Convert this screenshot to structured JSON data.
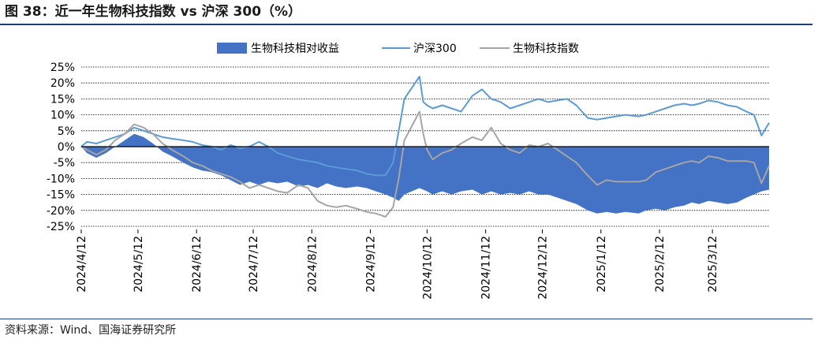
{
  "header": {
    "title": "图 38：近一年生物科技指数 vs 沪深 300（%）"
  },
  "footer": {
    "source": "资料来源：Wind、国海证券研究所"
  },
  "colors": {
    "relative": "#4472C4",
    "hs300": "#5B9BD5",
    "biotech": "#A5A5A5",
    "rule": "#1f3f7a"
  },
  "chart_data": {
    "type": "area",
    "title": "",
    "legend_position": "top-center",
    "grid": true,
    "ylim": [
      -25,
      25
    ],
    "y_ticks": [
      "25%",
      "20%",
      "15%",
      "10%",
      "5%",
      "0%",
      "-5%",
      "-10%",
      "-15%",
      "-20%",
      "-25%"
    ],
    "x_ticks": [
      "2024/4/12",
      "2024/5/12",
      "2024/6/12",
      "2024/7/12",
      "2024/8/12",
      "2024/9/12",
      "2024/10/12",
      "2024/11/12",
      "2024/12/12",
      "2025/1/12",
      "2025/2/12",
      "2025/3/12"
    ],
    "xlim": [
      "2024-04-12",
      "2025-04-11"
    ],
    "series": [
      {
        "name": "生物科技相对收益",
        "type": "area",
        "points": [
          [
            "2024-04-12",
            0
          ],
          [
            "2024-04-15",
            -2
          ],
          [
            "2024-04-20",
            -3.5
          ],
          [
            "2024-04-25",
            -2
          ],
          [
            "2024-04-30",
            0
          ],
          [
            "2024-05-05",
            2
          ],
          [
            "2024-05-10",
            4
          ],
          [
            "2024-05-15",
            3
          ],
          [
            "2024-05-20",
            1
          ],
          [
            "2024-05-25",
            -1.5
          ],
          [
            "2024-05-30",
            -3
          ],
          [
            "2024-06-05",
            -5
          ],
          [
            "2024-06-10",
            -6.5
          ],
          [
            "2024-06-15",
            -7.5
          ],
          [
            "2024-06-20",
            -8
          ],
          [
            "2024-06-25",
            -9
          ],
          [
            "2024-06-30",
            -10.5
          ],
          [
            "2024-07-05",
            -12
          ],
          [
            "2024-07-10",
            -11
          ],
          [
            "2024-07-15",
            -12
          ],
          [
            "2024-07-20",
            -11
          ],
          [
            "2024-07-25",
            -11.5
          ],
          [
            "2024-07-30",
            -11
          ],
          [
            "2024-08-05",
            -12.5
          ],
          [
            "2024-08-10",
            -12
          ],
          [
            "2024-08-15",
            -13
          ],
          [
            "2024-08-20",
            -11.5
          ],
          [
            "2024-08-25",
            -12.5
          ],
          [
            "2024-08-30",
            -13
          ],
          [
            "2024-09-05",
            -12.5
          ],
          [
            "2024-09-10",
            -13
          ],
          [
            "2024-09-15",
            -14
          ],
          [
            "2024-09-20",
            -15
          ],
          [
            "2024-09-24",
            -16
          ],
          [
            "2024-09-27",
            -17
          ],
          [
            "2024-09-30",
            -15
          ],
          [
            "2024-10-08",
            -13
          ],
          [
            "2024-10-12",
            -14
          ],
          [
            "2024-10-15",
            -15
          ],
          [
            "2024-10-20",
            -14
          ],
          [
            "2024-10-25",
            -15
          ],
          [
            "2024-10-30",
            -14
          ],
          [
            "2024-11-05",
            -13.5
          ],
          [
            "2024-11-10",
            -15
          ],
          [
            "2024-11-15",
            -14
          ],
          [
            "2024-11-20",
            -15
          ],
          [
            "2024-11-25",
            -14.5
          ],
          [
            "2024-11-30",
            -15
          ],
          [
            "2024-12-05",
            -14
          ],
          [
            "2024-12-10",
            -15
          ],
          [
            "2024-12-15",
            -15
          ],
          [
            "2024-12-20",
            -16
          ],
          [
            "2024-12-25",
            -17
          ],
          [
            "2024-12-30",
            -18
          ],
          [
            "2025-01-05",
            -20
          ],
          [
            "2025-01-10",
            -21
          ],
          [
            "2025-01-15",
            -20.5
          ],
          [
            "2025-01-20",
            -21
          ],
          [
            "2025-01-25",
            -20.5
          ],
          [
            "2025-02-01",
            -21
          ],
          [
            "2025-02-05",
            -20
          ],
          [
            "2025-02-10",
            -19.5
          ],
          [
            "2025-02-15",
            -20
          ],
          [
            "2025-02-20",
            -19
          ],
          [
            "2025-02-25",
            -18.5
          ],
          [
            "2025-03-01",
            -17.5
          ],
          [
            "2025-03-05",
            -18
          ],
          [
            "2025-03-10",
            -17
          ],
          [
            "2025-03-15",
            -17.5
          ],
          [
            "2025-03-20",
            -18
          ],
          [
            "2025-03-25",
            -17.5
          ],
          [
            "2025-03-30",
            -16
          ],
          [
            "2025-04-03",
            -15
          ],
          [
            "2025-04-07",
            -14
          ],
          [
            "2025-04-11",
            -13.5
          ]
        ]
      },
      {
        "name": "沪深300",
        "type": "line",
        "points": [
          [
            "2024-04-12",
            0
          ],
          [
            "2024-04-15",
            1.5
          ],
          [
            "2024-04-20",
            1
          ],
          [
            "2024-04-25",
            2
          ],
          [
            "2024-04-30",
            3
          ],
          [
            "2024-05-05",
            4
          ],
          [
            "2024-05-10",
            6
          ],
          [
            "2024-05-15",
            5
          ],
          [
            "2024-05-20",
            4
          ],
          [
            "2024-05-25",
            3
          ],
          [
            "2024-05-30",
            2.5
          ],
          [
            "2024-06-05",
            2
          ],
          [
            "2024-06-10",
            1.5
          ],
          [
            "2024-06-15",
            0.5
          ],
          [
            "2024-06-20",
            0
          ],
          [
            "2024-06-25",
            -1
          ],
          [
            "2024-06-30",
            0.5
          ],
          [
            "2024-07-05",
            -0.5
          ],
          [
            "2024-07-10",
            0
          ],
          [
            "2024-07-15",
            1.5
          ],
          [
            "2024-07-20",
            0
          ],
          [
            "2024-07-25",
            -2
          ],
          [
            "2024-07-30",
            -3
          ],
          [
            "2024-08-05",
            -4
          ],
          [
            "2024-08-10",
            -4.5
          ],
          [
            "2024-08-15",
            -5
          ],
          [
            "2024-08-20",
            -6
          ],
          [
            "2024-08-25",
            -6.5
          ],
          [
            "2024-08-30",
            -7
          ],
          [
            "2024-09-05",
            -7.5
          ],
          [
            "2024-09-10",
            -8.5
          ],
          [
            "2024-09-15",
            -9
          ],
          [
            "2024-09-20",
            -9
          ],
          [
            "2024-09-24",
            -5
          ],
          [
            "2024-09-27",
            5
          ],
          [
            "2024-09-30",
            15
          ],
          [
            "2024-10-08",
            22
          ],
          [
            "2024-10-10",
            14
          ],
          [
            "2024-10-12",
            13
          ],
          [
            "2024-10-15",
            12
          ],
          [
            "2024-10-20",
            13
          ],
          [
            "2024-10-25",
            12
          ],
          [
            "2024-10-30",
            11
          ],
          [
            "2024-11-05",
            16
          ],
          [
            "2024-11-10",
            18
          ],
          [
            "2024-11-15",
            15
          ],
          [
            "2024-11-20",
            14
          ],
          [
            "2024-11-25",
            12
          ],
          [
            "2024-11-30",
            13
          ],
          [
            "2024-12-05",
            14
          ],
          [
            "2024-12-10",
            15
          ],
          [
            "2024-12-15",
            14
          ],
          [
            "2024-12-20",
            14.5
          ],
          [
            "2024-12-25",
            15
          ],
          [
            "2024-12-30",
            13
          ],
          [
            "2025-01-05",
            9
          ],
          [
            "2025-01-10",
            8.5
          ],
          [
            "2025-01-15",
            9
          ],
          [
            "2025-01-20",
            9.5
          ],
          [
            "2025-01-25",
            10
          ],
          [
            "2025-02-01",
            9.5
          ],
          [
            "2025-02-05",
            10
          ],
          [
            "2025-02-10",
            11
          ],
          [
            "2025-02-15",
            12
          ],
          [
            "2025-02-20",
            13
          ],
          [
            "2025-02-25",
            13.5
          ],
          [
            "2025-03-01",
            13
          ],
          [
            "2025-03-05",
            13.5
          ],
          [
            "2025-03-10",
            14.5
          ],
          [
            "2025-03-15",
            14
          ],
          [
            "2025-03-20",
            13
          ],
          [
            "2025-03-25",
            12.5
          ],
          [
            "2025-03-30",
            11
          ],
          [
            "2025-04-03",
            10
          ],
          [
            "2025-04-07",
            3.5
          ],
          [
            "2025-04-11",
            7.5
          ]
        ]
      },
      {
        "name": "生物科技指数",
        "type": "line",
        "points": [
          [
            "2024-04-12",
            0
          ],
          [
            "2024-04-15",
            -1
          ],
          [
            "2024-04-20",
            -2.5
          ],
          [
            "2024-04-25",
            -1
          ],
          [
            "2024-04-30",
            2
          ],
          [
            "2024-05-05",
            4
          ],
          [
            "2024-05-10",
            7
          ],
          [
            "2024-05-15",
            6
          ],
          [
            "2024-05-20",
            4
          ],
          [
            "2024-05-25",
            1
          ],
          [
            "2024-05-30",
            -1
          ],
          [
            "2024-06-05",
            -3
          ],
          [
            "2024-06-10",
            -5
          ],
          [
            "2024-06-15",
            -6
          ],
          [
            "2024-06-20",
            -7.5
          ],
          [
            "2024-06-25",
            -8.5
          ],
          [
            "2024-06-30",
            -9.5
          ],
          [
            "2024-07-05",
            -11
          ],
          [
            "2024-07-10",
            -13
          ],
          [
            "2024-07-15",
            -12
          ],
          [
            "2024-07-20",
            -13
          ],
          [
            "2024-07-25",
            -14
          ],
          [
            "2024-07-30",
            -14.5
          ],
          [
            "2024-08-05",
            -12
          ],
          [
            "2024-08-10",
            -13
          ],
          [
            "2024-08-15",
            -17
          ],
          [
            "2024-08-20",
            -18.5
          ],
          [
            "2024-08-25",
            -19
          ],
          [
            "2024-08-30",
            -18.5
          ],
          [
            "2024-09-05",
            -19.5
          ],
          [
            "2024-09-10",
            -20.5
          ],
          [
            "2024-09-15",
            -21
          ],
          [
            "2024-09-20",
            -22
          ],
          [
            "2024-09-24",
            -19
          ],
          [
            "2024-09-27",
            -10
          ],
          [
            "2024-09-30",
            2
          ],
          [
            "2024-10-08",
            11
          ],
          [
            "2024-10-10",
            4
          ],
          [
            "2024-10-12",
            -1
          ],
          [
            "2024-10-15",
            -4
          ],
          [
            "2024-10-20",
            -2
          ],
          [
            "2024-10-25",
            -1
          ],
          [
            "2024-10-30",
            1
          ],
          [
            "2024-11-05",
            3
          ],
          [
            "2024-11-10",
            2
          ],
          [
            "2024-11-15",
            6
          ],
          [
            "2024-11-20",
            1
          ],
          [
            "2024-11-25",
            -1
          ],
          [
            "2024-11-30",
            -2
          ],
          [
            "2024-12-05",
            0.5
          ],
          [
            "2024-12-10",
            0
          ],
          [
            "2024-12-15",
            1
          ],
          [
            "2024-12-20",
            -1
          ],
          [
            "2024-12-25",
            -3
          ],
          [
            "2024-12-30",
            -5
          ],
          [
            "2025-01-05",
            -9
          ],
          [
            "2025-01-10",
            -12
          ],
          [
            "2025-01-15",
            -10.5
          ],
          [
            "2025-01-20",
            -11
          ],
          [
            "2025-01-25",
            -11
          ],
          [
            "2025-02-01",
            -11
          ],
          [
            "2025-02-05",
            -10.5
          ],
          [
            "2025-02-10",
            -8
          ],
          [
            "2025-02-15",
            -7
          ],
          [
            "2025-02-20",
            -6
          ],
          [
            "2025-02-25",
            -5
          ],
          [
            "2025-03-01",
            -4.5
          ],
          [
            "2025-03-05",
            -5
          ],
          [
            "2025-03-10",
            -3
          ],
          [
            "2025-03-15",
            -3.5
          ],
          [
            "2025-03-20",
            -4.5
          ],
          [
            "2025-03-25",
            -4.5
          ],
          [
            "2025-03-30",
            -4.5
          ],
          [
            "2025-04-03",
            -5
          ],
          [
            "2025-04-07",
            -11.5
          ],
          [
            "2025-04-11",
            -6
          ]
        ]
      }
    ]
  }
}
